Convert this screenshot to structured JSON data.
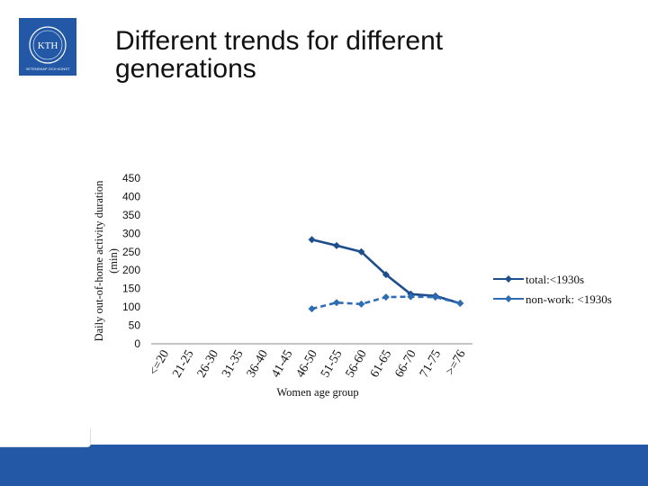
{
  "slide": {
    "title_line1": "Different trends for different",
    "title_line2": "generations",
    "logo_text": "KTH",
    "logo_subtext": "VETENSKAP OCH KONST"
  },
  "colors": {
    "accent": "#2258a5",
    "series_dark": "#1f4e8c",
    "series_light": "#2e6db4",
    "footer": "#2258a5"
  },
  "chart_data": {
    "type": "line",
    "xlabel": "Women age group",
    "ylabel": "Daily out-of-home activity duration (min)",
    "ylim": [
      0,
      450
    ],
    "yticks": [
      "0",
      "50",
      "100",
      "150",
      "200",
      "250",
      "300",
      "350",
      "400",
      "450"
    ],
    "categories": [
      "<=20",
      "21-25",
      "26-30",
      "31-35",
      "36-40",
      "41-45",
      "46-50",
      "51-55",
      "56-60",
      "61-65",
      "66-70",
      "71-75",
      ">=76"
    ],
    "series": [
      {
        "name": "total:<1930s",
        "style": "solid",
        "values": [
          null,
          null,
          null,
          null,
          null,
          null,
          283,
          267,
          250,
          188,
          135,
          130,
          110
        ]
      },
      {
        "name": "non-work: <1930s",
        "style": "dashed",
        "values": [
          null,
          null,
          null,
          null,
          null,
          null,
          95,
          112,
          108,
          127,
          128,
          127,
          110
        ]
      }
    ],
    "legend_position": "right"
  }
}
